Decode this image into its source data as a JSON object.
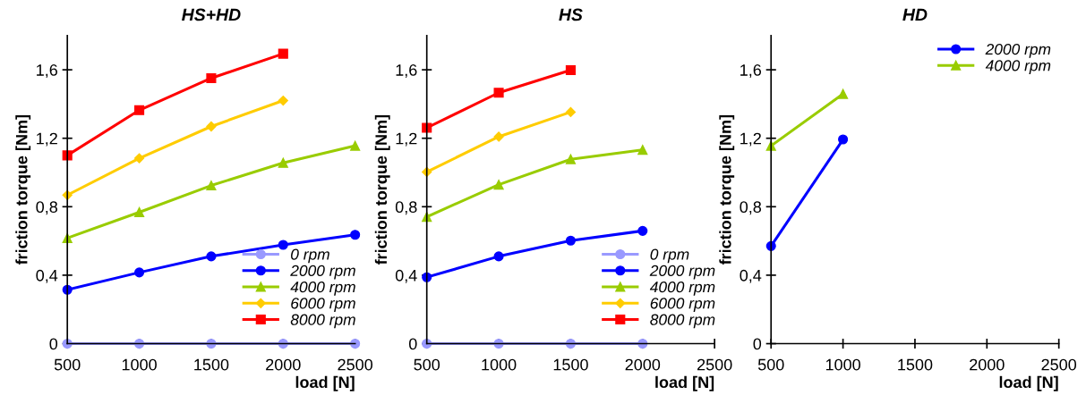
{
  "chart_data": [
    {
      "type": "line",
      "title": "HS+HD",
      "xlabel": "load [N]",
      "ylabel": "friction torque [Nm]",
      "x": [
        500,
        1000,
        1500,
        2000,
        2500
      ],
      "xlim": [
        500,
        2500
      ],
      "xticks": [
        500,
        1000,
        1500,
        2000,
        2500
      ],
      "ylim": [
        0,
        1.8
      ],
      "yticks": [
        {
          "value": 0,
          "label": "0"
        },
        {
          "value": 0.4,
          "label": "0,4"
        },
        {
          "value": 0.8,
          "label": "0,8"
        },
        {
          "value": 1.2,
          "label": "1,2"
        },
        {
          "value": 1.6,
          "label": "1,6"
        }
      ],
      "grid": false,
      "legend": "bottom right",
      "series": [
        {
          "name": "0 rpm",
          "color": "#9999ff",
          "marker": "circle",
          "values": [
            0,
            0,
            0,
            0,
            0
          ]
        },
        {
          "name": "2000 rpm",
          "color": "#0000ff",
          "marker": "circle",
          "values": [
            0.315,
            0.416,
            0.51,
            0.577,
            0.636
          ]
        },
        {
          "name": "4000 rpm",
          "color": "#99cc00",
          "marker": "triangle",
          "values": [
            0.617,
            0.768,
            0.924,
            1.056,
            1.156
          ]
        },
        {
          "name": "6000 rpm",
          "color": "#ffcc00",
          "marker": "diamond",
          "values": [
            0.868,
            1.083,
            1.269,
            1.42,
            null
          ]
        },
        {
          "name": "8000 rpm",
          "color": "#ff0000",
          "marker": "square",
          "values": [
            1.1,
            1.364,
            1.551,
            1.694,
            null
          ]
        }
      ]
    },
    {
      "type": "line",
      "title": "HS",
      "xlabel": "load [N]",
      "ylabel": "friction torque [Nm]",
      "x": [
        500,
        1000,
        1500,
        2000
      ],
      "xlim": [
        500,
        2500
      ],
      "xticks": [
        500,
        1000,
        1500,
        2000,
        2500
      ],
      "ylim": [
        0,
        1.8
      ],
      "yticks": [
        {
          "value": 0,
          "label": "0"
        },
        {
          "value": 0.4,
          "label": "0,4"
        },
        {
          "value": 0.8,
          "label": "0,8"
        },
        {
          "value": 1.2,
          "label": "1,2"
        },
        {
          "value": 1.6,
          "label": "1,6"
        }
      ],
      "grid": false,
      "legend": "bottom right",
      "series": [
        {
          "name": "0 rpm",
          "color": "#9999ff",
          "marker": "circle",
          "values": [
            0,
            0,
            0,
            0
          ]
        },
        {
          "name": "2000 rpm",
          "color": "#0000ff",
          "marker": "circle",
          "values": [
            0.388,
            0.51,
            0.602,
            0.659
          ]
        },
        {
          "name": "4000 rpm",
          "color": "#99cc00",
          "marker": "triangle",
          "values": [
            0.741,
            0.929,
            1.077,
            1.132
          ]
        },
        {
          "name": "6000 rpm",
          "color": "#ffcc00",
          "marker": "diamond",
          "values": [
            1.003,
            1.209,
            1.353,
            null
          ]
        },
        {
          "name": "8000 rpm",
          "color": "#ff0000",
          "marker": "square",
          "values": [
            1.261,
            1.466,
            1.598,
            null
          ]
        }
      ]
    },
    {
      "type": "line",
      "title": "HD",
      "xlabel": "load [N]",
      "ylabel": "friction torque [Nm]",
      "x": [
        500,
        1000
      ],
      "xlim": [
        500,
        2500
      ],
      "xticks": [
        500,
        1000,
        1500,
        2000,
        2500
      ],
      "ylim": [
        0,
        1.8
      ],
      "yticks": [
        {
          "value": 0,
          "label": "0"
        },
        {
          "value": 0.4,
          "label": "0,4"
        },
        {
          "value": 0.8,
          "label": "0,8"
        },
        {
          "value": 1.2,
          "label": "1,2"
        },
        {
          "value": 1.6,
          "label": "1,6"
        }
      ],
      "grid": false,
      "legend": "top right",
      "series": [
        {
          "name": "2000 rpm",
          "color": "#0000ff",
          "marker": "circle",
          "values": [
            0.57,
            1.193
          ]
        },
        {
          "name": "4000 rpm",
          "color": "#99cc00",
          "marker": "triangle",
          "values": [
            1.156,
            1.459
          ]
        }
      ]
    }
  ]
}
